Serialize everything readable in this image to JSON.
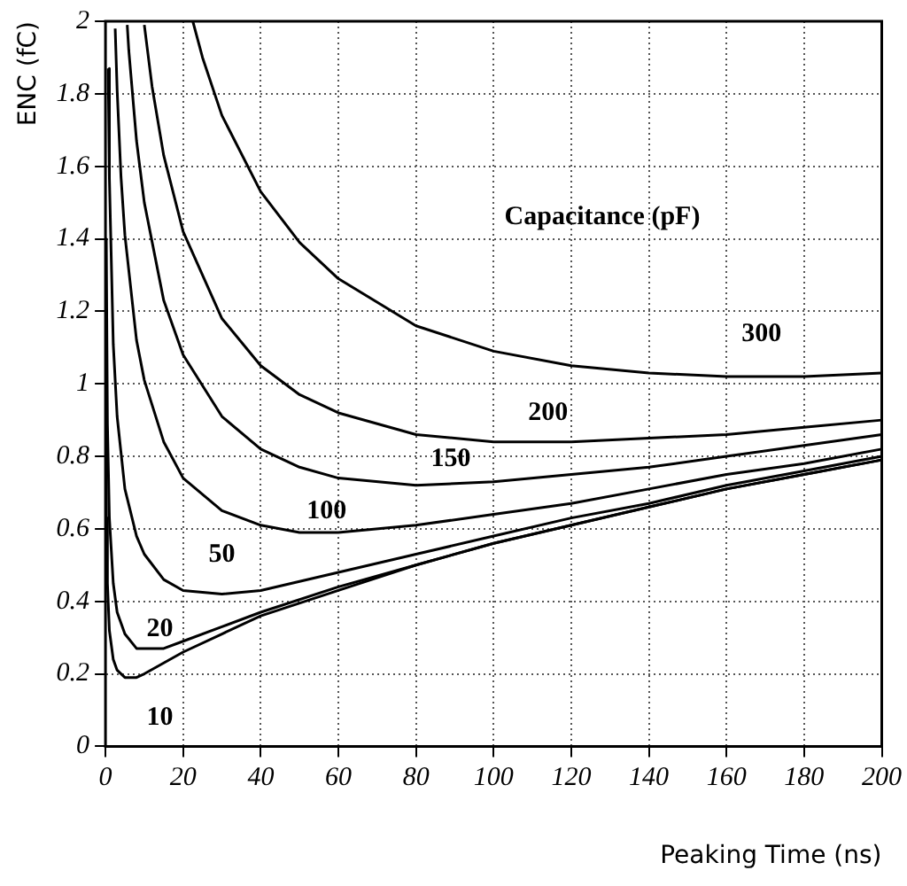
{
  "chart_data": {
    "type": "line",
    "xlabel": "Peaking Time (ns)",
    "ylabel": "ENC (fC)",
    "xlim": [
      0,
      200
    ],
    "xticks": [
      0,
      20,
      40,
      60,
      80,
      100,
      120,
      140,
      160,
      180,
      200
    ],
    "ylim": [
      0,
      2
    ],
    "yticks": [
      0,
      0.2,
      0.4,
      0.6,
      0.8,
      1,
      1.2,
      1.4,
      1.6,
      1.8,
      2
    ],
    "grid": true,
    "legend": false,
    "marker": "none",
    "line_style": "solid",
    "series": [
      {
        "name": "10",
        "color": "#000000",
        "x": [
          0.05,
          0.1,
          0.25,
          0.5,
          1,
          2,
          3,
          5,
          8,
          10,
          15,
          20,
          30,
          40,
          60,
          80,
          100,
          120,
          140,
          160,
          180,
          200
        ],
        "values": [
          1.4,
          0.99,
          0.63,
          0.45,
          0.32,
          0.24,
          0.21,
          0.19,
          0.19,
          0.2,
          0.23,
          0.26,
          0.31,
          0.36,
          0.43,
          0.5,
          0.56,
          0.61,
          0.66,
          0.71,
          0.75,
          0.79
        ]
      },
      {
        "name": "20",
        "color": "#000000",
        "x": [
          0.2,
          0.5,
          1,
          2,
          3,
          5,
          8,
          10,
          15,
          20,
          30,
          40,
          60,
          80,
          100,
          120,
          140,
          160,
          180,
          200
        ],
        "values": [
          1.4,
          0.89,
          0.63,
          0.45,
          0.37,
          0.31,
          0.27,
          0.27,
          0.27,
          0.29,
          0.33,
          0.37,
          0.44,
          0.5,
          0.56,
          0.61,
          0.66,
          0.71,
          0.75,
          0.79
        ]
      },
      {
        "name": "50",
        "color": "#000000",
        "x": [
          0.7,
          1,
          2,
          3,
          5,
          8,
          10,
          15,
          20,
          30,
          40,
          60,
          80,
          100,
          120,
          140,
          160,
          180,
          200
        ],
        "values": [
          1.87,
          1.57,
          1.11,
          0.91,
          0.71,
          0.58,
          0.53,
          0.46,
          0.43,
          0.42,
          0.43,
          0.48,
          0.53,
          0.58,
          0.63,
          0.67,
          0.72,
          0.76,
          0.8
        ]
      },
      {
        "name": "100",
        "color": "#000000",
        "x": [
          2.5,
          3,
          4,
          5,
          8,
          10,
          15,
          20,
          30,
          40,
          50,
          60,
          80,
          100,
          120,
          140,
          160,
          180,
          200
        ],
        "values": [
          1.98,
          1.81,
          1.57,
          1.41,
          1.12,
          1.01,
          0.84,
          0.74,
          0.65,
          0.61,
          0.59,
          0.59,
          0.61,
          0.64,
          0.67,
          0.71,
          0.75,
          0.78,
          0.82
        ]
      },
      {
        "name": "150",
        "color": "#000000",
        "x": [
          5.6,
          6,
          8,
          10,
          15,
          20,
          30,
          40,
          50,
          60,
          80,
          100,
          120,
          140,
          160,
          180,
          200
        ],
        "values": [
          1.99,
          1.92,
          1.67,
          1.5,
          1.23,
          1.08,
          0.91,
          0.82,
          0.77,
          0.74,
          0.72,
          0.73,
          0.75,
          0.77,
          0.8,
          0.83,
          0.86
        ]
      },
      {
        "name": "200",
        "color": "#000000",
        "x": [
          10,
          12,
          15,
          20,
          30,
          40,
          50,
          60,
          80,
          100,
          120,
          140,
          160,
          180,
          200
        ],
        "values": [
          1.99,
          1.82,
          1.63,
          1.42,
          1.18,
          1.05,
          0.97,
          0.92,
          0.86,
          0.84,
          0.84,
          0.85,
          0.86,
          0.88,
          0.9
        ]
      },
      {
        "name": "300",
        "color": "#000000",
        "x": [
          22.5,
          25,
          30,
          40,
          50,
          60,
          80,
          100,
          120,
          140,
          160,
          180,
          200
        ],
        "values": [
          2.0,
          1.9,
          1.74,
          1.53,
          1.39,
          1.29,
          1.16,
          1.09,
          1.05,
          1.03,
          1.02,
          1.02,
          1.03
        ]
      }
    ],
    "annotations": [
      "Capacitance (pF)"
    ]
  }
}
